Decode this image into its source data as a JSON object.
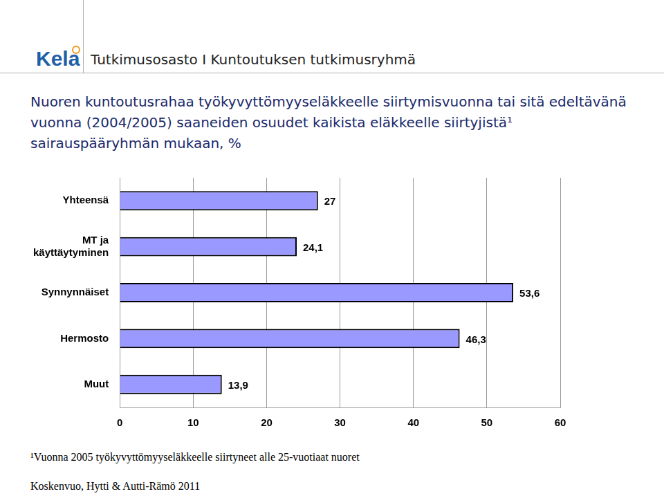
{
  "header": {
    "logo": "Kela",
    "unit": "Tutkimusosasto I Kuntoutuksen tutkimusryhmä"
  },
  "chart_data": {
    "type": "bar",
    "orientation": "horizontal",
    "title": "Nuoren kuntoutusrahaa työkyvyttömyyseläkkeelle siirtymisvuonna tai sitä edeltävänä vuonna (2004/2005) saaneiden osuudet kaikista eläkkeelle siirtyjistä¹ sairauspääryhmän mukaan, %",
    "categories": [
      "Yhteensä",
      "MT ja käyttäytyminen",
      "Synnynnäiset",
      "Hermosto",
      "Muut"
    ],
    "values": [
      27,
      24.1,
      53.6,
      46.3,
      13.9
    ],
    "value_labels": [
      "27",
      "24,1",
      "53,6",
      "46,3",
      "13,9"
    ],
    "color": "#9999ff",
    "xlim": [
      0,
      60
    ],
    "xticks": [
      0,
      10,
      20,
      30,
      40,
      50,
      60
    ],
    "grid": true,
    "data_labels": true
  },
  "footnote": "¹Vuonna 2005 työkyvyttömyyseläkkeelle siirtyneet alle 25-vuotiaat nuoret",
  "source": "Koskenvuo, Hytti & Autti-Rämö 2011"
}
